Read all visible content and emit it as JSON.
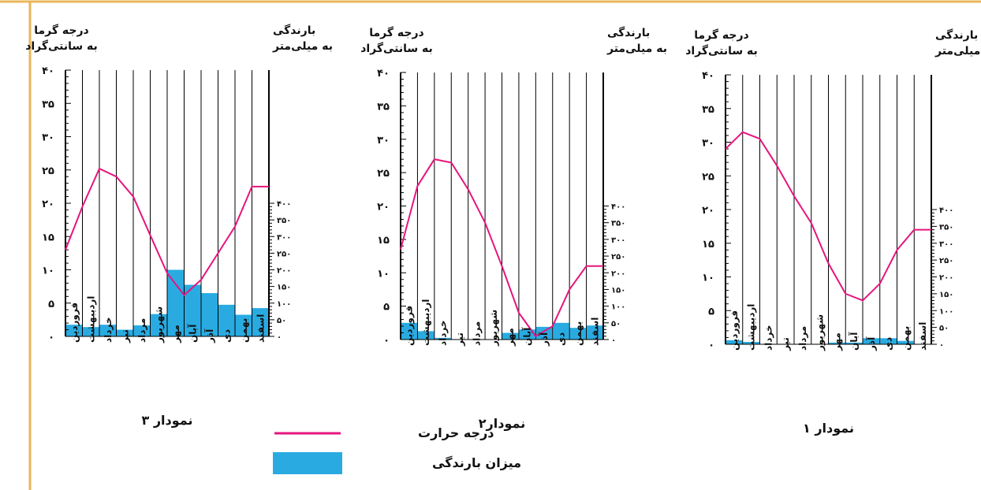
{
  "colors": {
    "border": "#e8b65a",
    "precipitation": "#29abe2",
    "temperature": "#e6157e",
    "grid": "#000000"
  },
  "months": [
    "فروردین",
    "اردیبهشت",
    "خرداد",
    "تیر",
    "مرداد",
    "شهریور",
    "مهر",
    "آبان",
    "آذر",
    "دی",
    "بهمن",
    "اسفند"
  ],
  "left_axis": {
    "title_line1": "درجه گرما",
    "title_line2": "به سانتی‌گراد",
    "ticks": [
      "۰",
      "۵",
      "۱۰",
      "۱۵",
      "۲۰",
      "۲۵",
      "۳۰",
      "۳۵",
      "۴۰"
    ]
  },
  "right_axis": {
    "title_line1": "بارندگی",
    "title_line2": "به میلی‌متر",
    "ticks": [
      "۰",
      "۵۰",
      "۱۰۰",
      "۱۵۰",
      "۲۰۰",
      "۲۵۰",
      "۳۰۰",
      "۳۵۰",
      "۴۰۰"
    ]
  },
  "legend": {
    "temperature_label": "درجه حرارت",
    "precipitation_label": "میزان بارندگی"
  },
  "chart_data": [
    {
      "type": "bar",
      "title": "نمودار ۳",
      "categories": [
        "فروردین",
        "اردیبهشت",
        "خرداد",
        "تیر",
        "مرداد",
        "شهریور",
        "مهر",
        "آبان",
        "آذر",
        "دی",
        "بهمن",
        "اسفند"
      ],
      "series": [
        {
          "name": "میزان بارندگی",
          "type": "bar",
          "axis": "right",
          "values": [
            35,
            28,
            35,
            20,
            33,
            67,
            200,
            155,
            130,
            95,
            65,
            85
          ]
        },
        {
          "name": "درجه حرارت",
          "type": "line",
          "axis": "left",
          "values": [
            13,
            19.5,
            25.2,
            24,
            21,
            15.2,
            9.5,
            6.2,
            8.5,
            12.5,
            16.5,
            22.5
          ]
        }
      ],
      "ylim_left": [
        0,
        40
      ],
      "ylim_right": [
        0,
        400
      ]
    },
    {
      "type": "bar",
      "title": "نمودار۲",
      "categories": [
        "فروردین",
        "اردیبهشت",
        "خرداد",
        "تیر",
        "مرداد",
        "شهریور",
        "مهر",
        "آبان",
        "آذر",
        "دی",
        "بهمن",
        "اسفند"
      ],
      "series": [
        {
          "name": "میزان بارندگی",
          "type": "bar",
          "axis": "right",
          "values": [
            50,
            25,
            5,
            0,
            0,
            0,
            20,
            30,
            38,
            50,
            35,
            42
          ]
        },
        {
          "name": "درجه حرارت",
          "type": "line",
          "axis": "left",
          "values": [
            13.5,
            23,
            27,
            26.5,
            22.5,
            17.5,
            11,
            4,
            0.5,
            2,
            7.5,
            11
          ]
        }
      ],
      "ylim_left": [
        0,
        40
      ],
      "ylim_right": [
        0,
        400
      ]
    },
    {
      "type": "bar",
      "title": "نمودار ۱",
      "categories": [
        "فروردین",
        "اردیبهشت",
        "خرداد",
        "تیر",
        "مرداد",
        "شهریور",
        "مهر",
        "آبان",
        "آذر",
        "دی",
        "بهمن",
        "اسفند"
      ],
      "series": [
        {
          "name": "میزان بارندگی",
          "type": "bar",
          "axis": "right",
          "values": [
            12,
            7,
            0,
            0,
            0,
            0,
            5,
            5,
            18,
            18,
            10,
            0
          ]
        },
        {
          "name": "درجه حرارت",
          "type": "line",
          "axis": "left",
          "values": [
            29,
            31.5,
            30.5,
            26.5,
            22,
            18,
            12,
            7.5,
            6.5,
            9,
            14,
            17
          ]
        }
      ],
      "ylim_left": [
        0,
        40
      ],
      "ylim_right": [
        0,
        400
      ]
    }
  ]
}
